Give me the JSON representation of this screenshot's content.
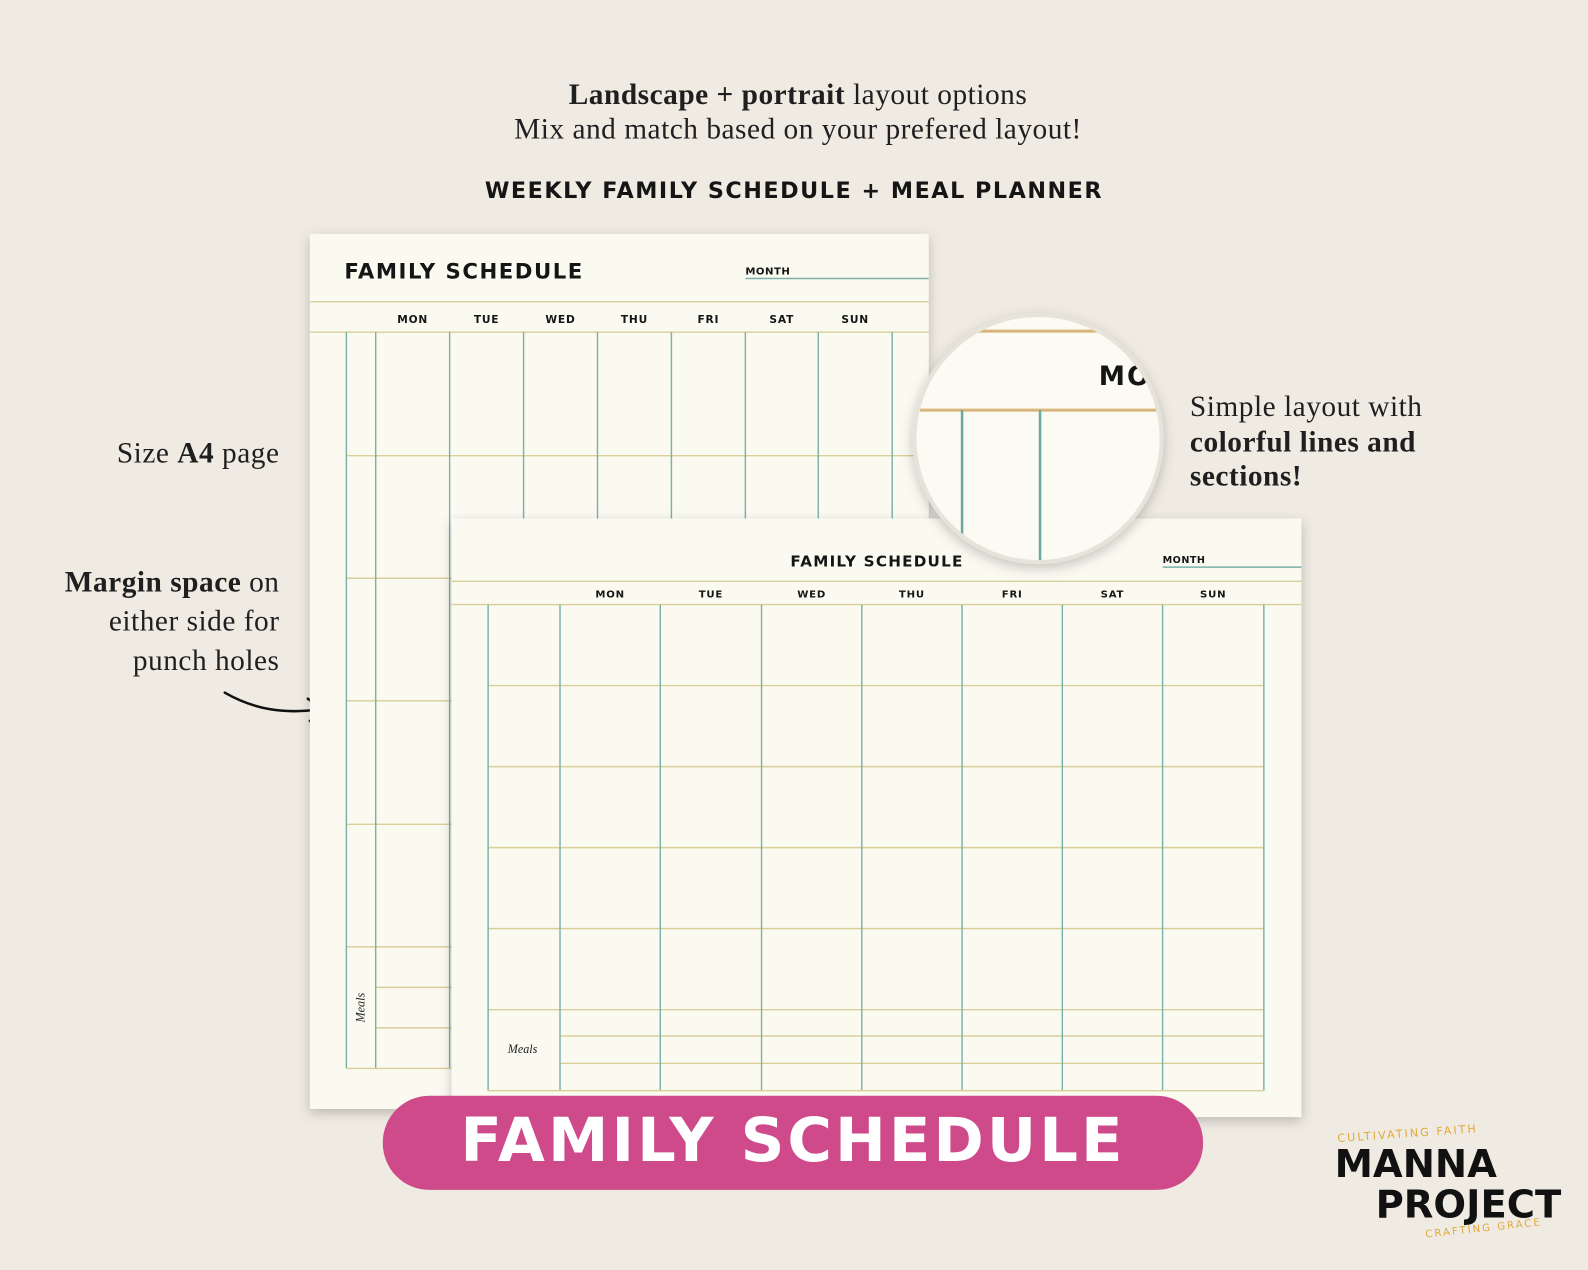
{
  "intro": {
    "line1_bold": "Landscape + portrait",
    "line1_rest": "layout options",
    "line2": "Mix and match based on your prefered layout!"
  },
  "subtitle": "WEEKLY FAMILY SCHEDULE + MEAL PLANNER",
  "notes": {
    "size": {
      "before": "Size",
      "bold": "A4",
      "after": "page"
    },
    "margin": {
      "bold": "Margin space",
      "line1_rest": "on",
      "line2": "either side for",
      "line3": "punch holes"
    },
    "layout": {
      "line1": "Simple layout with",
      "line2_bold": "colorful lines and",
      "line3_bold": "sections!"
    }
  },
  "portrait": {
    "title": "FAMILY SCHEDULE",
    "month": "MONTH",
    "days": [
      "MON",
      "TUE",
      "WED",
      "THU",
      "FRI",
      "SAT",
      "SUN"
    ],
    "meals": "Meals"
  },
  "landscape": {
    "title": "FAMILY SCHEDULE",
    "month": "MONTH",
    "days": [
      "MON",
      "TUE",
      "WED",
      "THU",
      "FRI",
      "SAT",
      "SUN"
    ],
    "meals": "Meals"
  },
  "zoom": {
    "text": "MO"
  },
  "banner": "FAMILY SCHEDULE",
  "logo": {
    "top": "CULTIVATING FAITH",
    "word1": "MANNA",
    "word2": "PROJECT",
    "bottom": "CRAFTING GRACE"
  }
}
